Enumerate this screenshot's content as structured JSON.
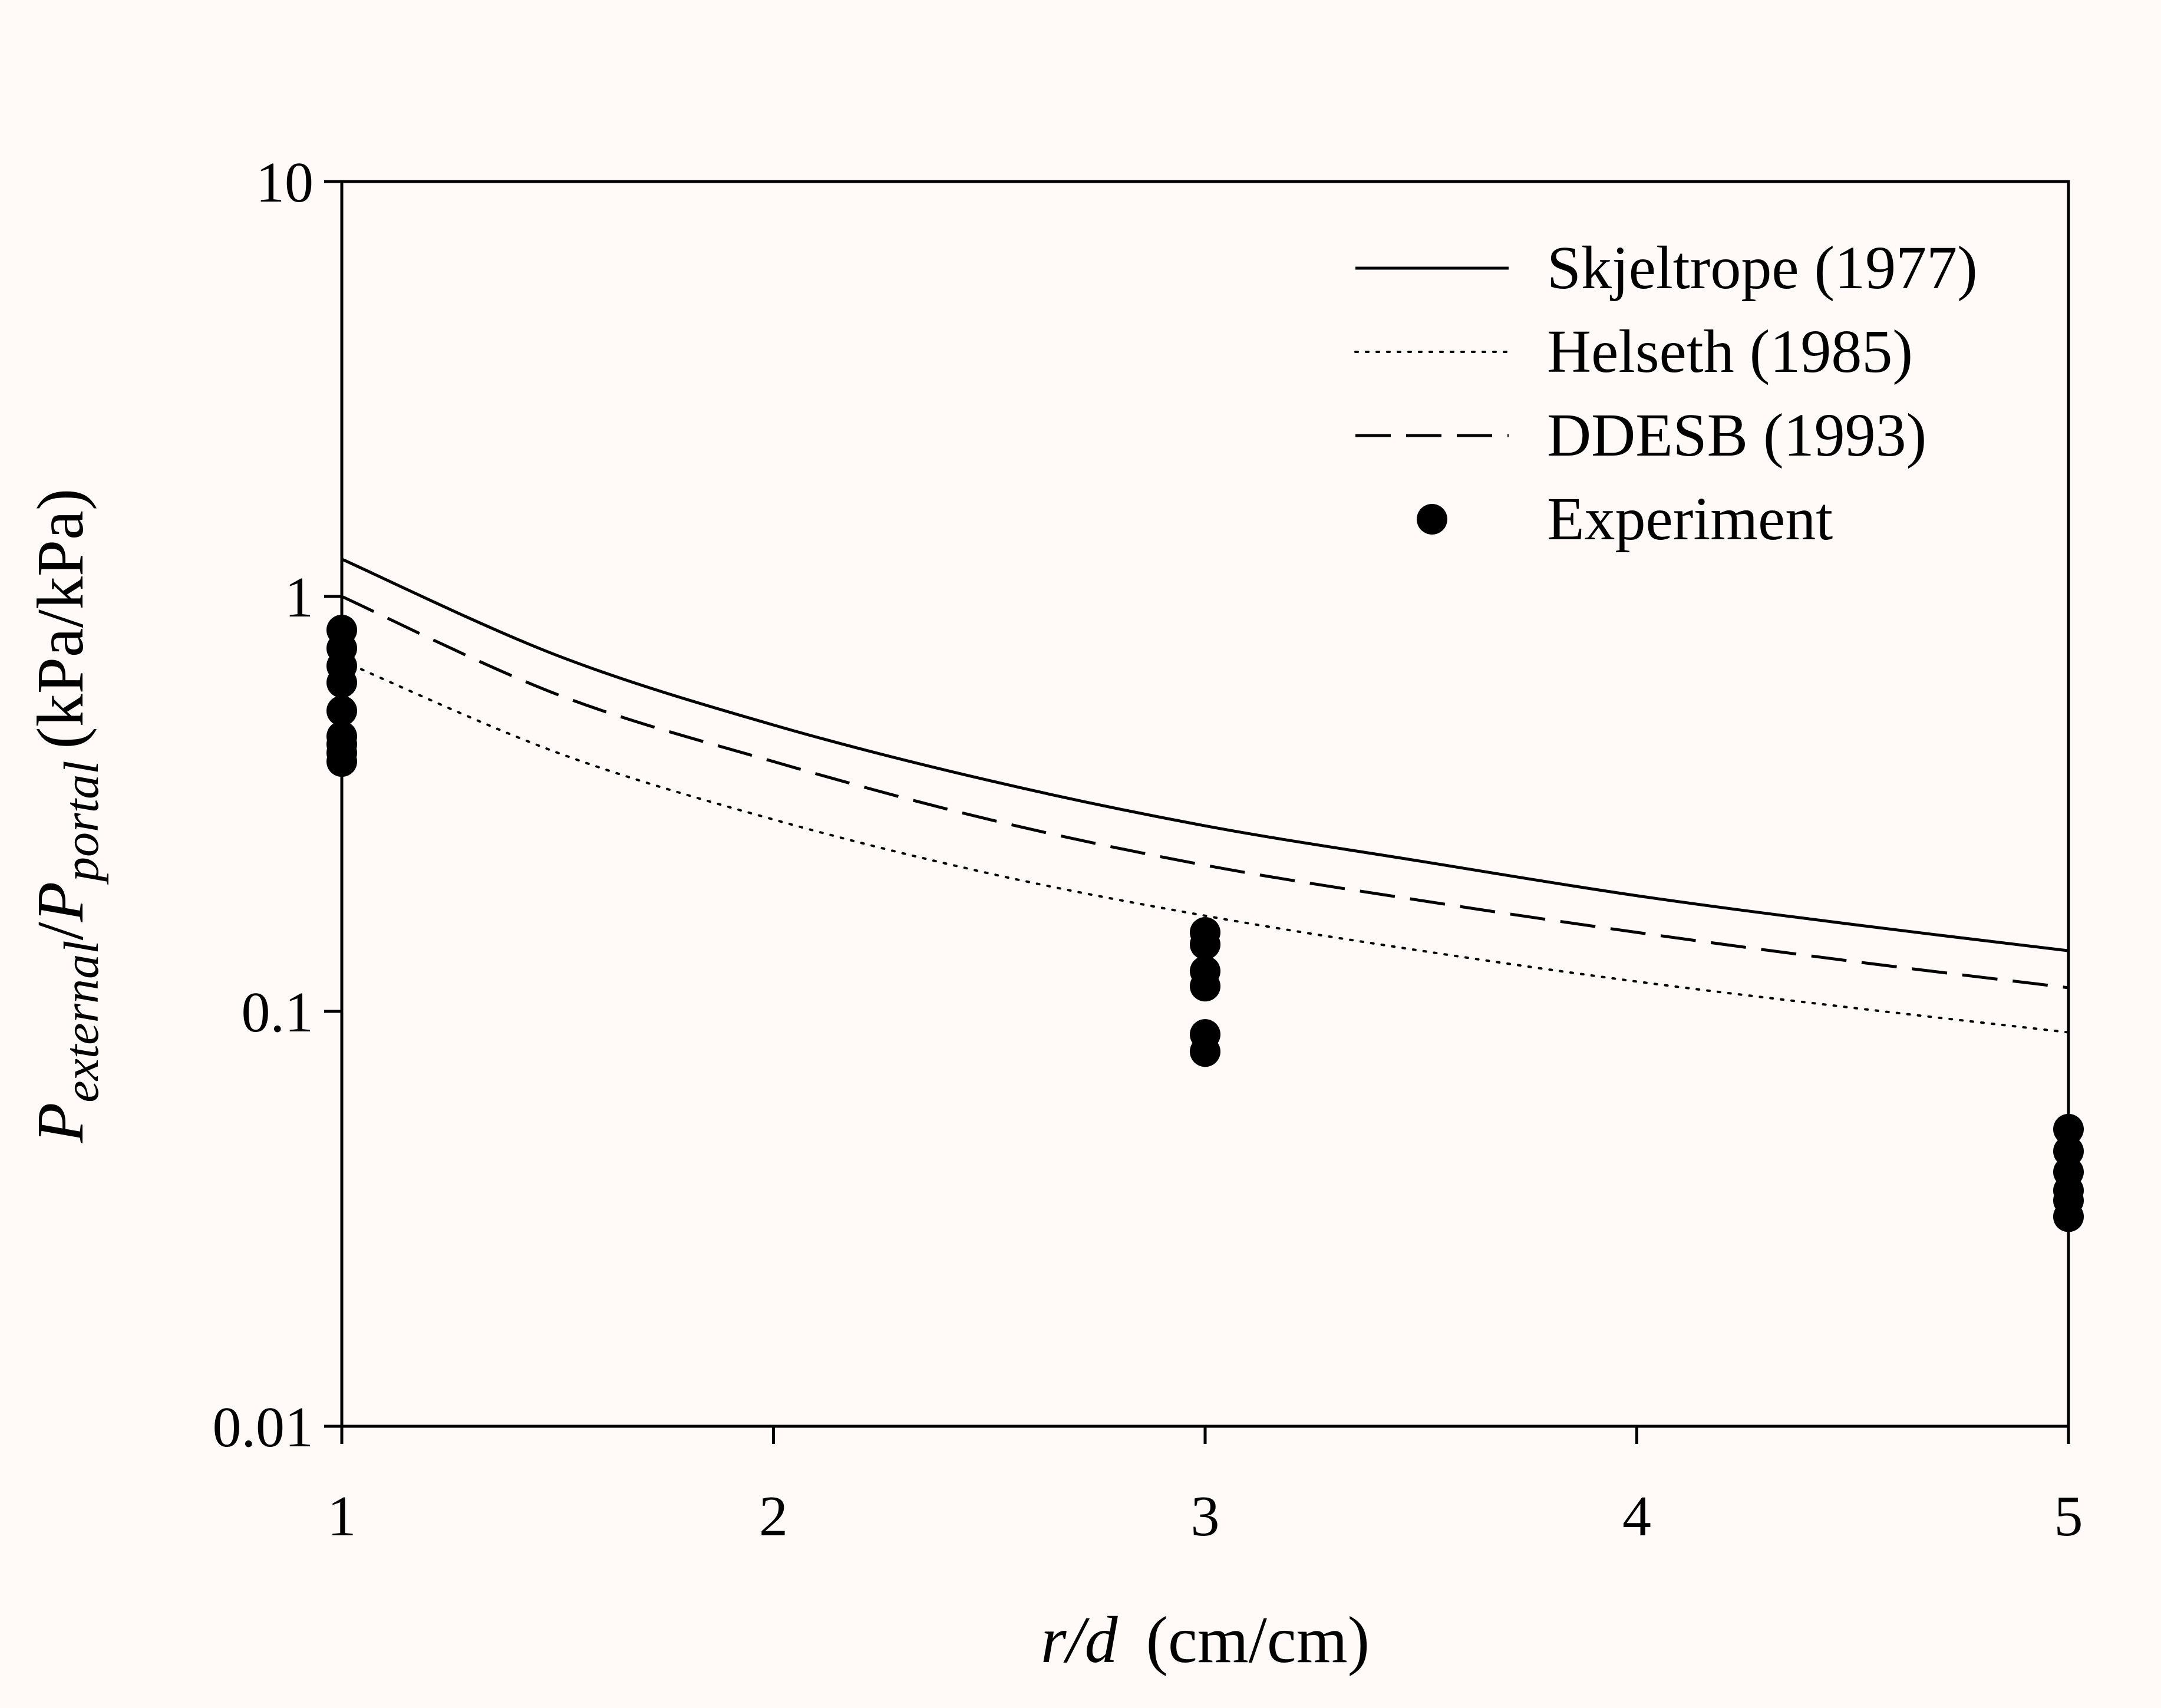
{
  "colors": {
    "background": "#fffaf8",
    "ink": "#000000"
  },
  "chart_data": {
    "type": "line",
    "title": "",
    "x_axis": {
      "label_italic_part": "r/d",
      "label_unit": "(cm/cm)",
      "range": [
        1,
        5
      ],
      "ticks": [
        1,
        2,
        3,
        4,
        5
      ],
      "tick_labels": [
        "1",
        "2",
        "3",
        "4",
        "5"
      ]
    },
    "y_axis": {
      "scale": "log",
      "label_base": "P",
      "label_sub1": "external",
      "label_sep": "/",
      "label_sub2": "portal",
      "label_unit": "(kPa/kPa)",
      "range": [
        0.01,
        10
      ],
      "ticks": [
        0.01,
        0.1,
        1,
        10
      ],
      "tick_labels": [
        "0.01",
        "0.1",
        "1",
        "10"
      ]
    },
    "legend": {
      "position": "top-right",
      "entries": [
        {
          "name": "Skjeltrope (1977)",
          "style": "solid"
        },
        {
          "name": "Helseth (1985)",
          "style": "dotted"
        },
        {
          "name": "DDESB (1993)",
          "style": "dashed"
        },
        {
          "name": "Experiment",
          "style": "marker"
        }
      ]
    },
    "series": [
      {
        "name": "Skjeltrope (1977)",
        "style": "solid",
        "x": [
          1.0,
          1.5,
          2.0,
          2.5,
          3.0,
          3.5,
          4.0,
          4.5,
          5.0
        ],
        "y": [
          1.23,
          0.72,
          0.49,
          0.36,
          0.28,
          0.23,
          0.19,
          0.162,
          0.14
        ]
      },
      {
        "name": "Helseth (1985)",
        "style": "dotted",
        "x": [
          1.0,
          1.5,
          2.0,
          2.5,
          3.0,
          3.5,
          4.0,
          4.5,
          5.0
        ],
        "y": [
          0.7,
          0.42,
          0.29,
          0.215,
          0.17,
          0.14,
          0.118,
          0.102,
          0.089
        ]
      },
      {
        "name": "DDESB (1993)",
        "style": "dashed",
        "x": [
          1.0,
          1.5,
          2.0,
          2.5,
          3.0,
          3.5,
          4.0,
          4.5,
          5.0
        ],
        "y": [
          1.0,
          0.58,
          0.4,
          0.29,
          0.225,
          0.185,
          0.155,
          0.132,
          0.114
        ]
      },
      {
        "name": "Experiment",
        "style": "marker",
        "x": [
          1,
          1,
          1,
          1,
          1,
          1,
          1,
          1,
          1,
          3,
          3,
          3,
          3,
          3,
          3,
          5,
          5,
          5,
          5,
          5,
          5
        ],
        "y": [
          0.83,
          0.75,
          0.68,
          0.62,
          0.53,
          0.46,
          0.44,
          0.42,
          0.4,
          0.155,
          0.145,
          0.125,
          0.115,
          0.088,
          0.08,
          0.052,
          0.046,
          0.041,
          0.037,
          0.035,
          0.032
        ]
      }
    ]
  }
}
